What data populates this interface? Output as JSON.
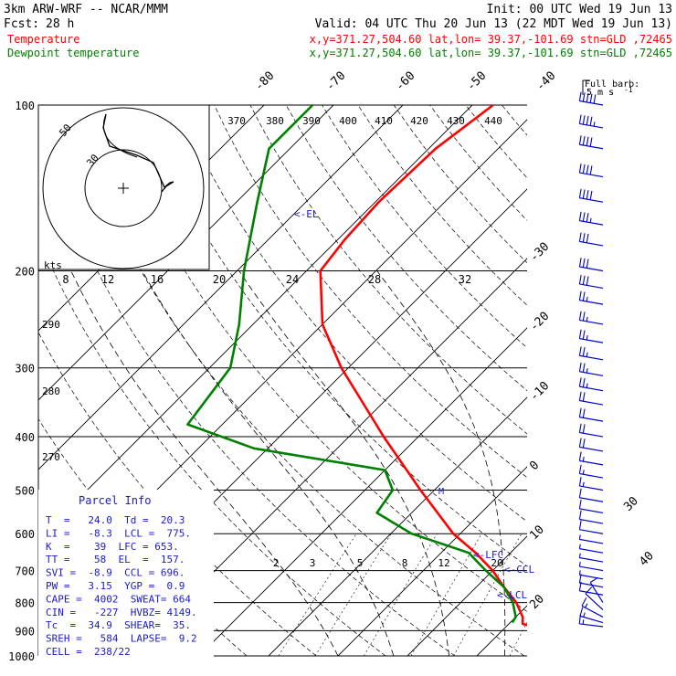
{
  "header": {
    "model": "3km ARW-WRF -- NCAR/MMM",
    "init": "Init: 00 UTC Wed 19 Jun 13",
    "fcst_label": "Fcst:",
    "fcst_value": "28 h",
    "valid": "Valid: 04 UTC Thu 20 Jun 13 (22 MDT Wed 19 Jun 13)",
    "temp_label": "Temperature",
    "temp_loc": "x,y=371.27,504.60   lat,lon= 39.37,-101.69  stn=GLD ,72465",
    "dew_label": "Dewpoint temperature",
    "dew_loc": "x,y=371.27,504.60   lat,lon= 39.37,-101.69  stn=GLD ,72465"
  },
  "colors": {
    "temperature": "#ff0000",
    "dewpoint": "#008000",
    "parcel": "#1a1acc",
    "barbs": "#0000cc"
  },
  "chart_data": {
    "type": "line",
    "diagram": "skew-T log-p",
    "pressure_ticks": [
      "100",
      "200",
      "300",
      "400",
      "500",
      "600",
      "700",
      "800",
      "900",
      "1000"
    ],
    "temperature_ticks": [
      "-80",
      "-70",
      "-60",
      "-50",
      "-40",
      "-30",
      "-20",
      "-10",
      "0",
      "10",
      "20",
      "30",
      "40"
    ],
    "theta_labels": [
      "370",
      "380",
      "390",
      "400",
      "410",
      "420",
      "430",
      "440"
    ],
    "theta_side_labels": [
      "290",
      "280",
      "270"
    ],
    "mixing_ratio_labels": [
      "2",
      "3",
      "5",
      "8",
      "12",
      "20"
    ],
    "hodograph": {
      "units": "kts",
      "ring_labels": [
        "50",
        "30"
      ],
      "speed_ticks": [
        "8",
        "12",
        "16",
        "20",
        "24",
        "28",
        "32"
      ]
    },
    "series": [
      {
        "name": "Temperature",
        "points": [
          [
            100,
            -57
          ],
          [
            120,
            -59
          ],
          [
            150,
            -59.5
          ],
          [
            175,
            -59
          ],
          [
            200,
            -58
          ],
          [
            250,
            -50
          ],
          [
            300,
            -41
          ],
          [
            400,
            -25
          ],
          [
            500,
            -12
          ],
          [
            600,
            -1
          ],
          [
            650,
            5
          ],
          [
            700,
            10
          ],
          [
            750,
            14
          ],
          [
            800,
            18
          ],
          [
            850,
            21
          ],
          [
            875,
            22
          ],
          [
            885,
            24
          ]
        ]
      },
      {
        "name": "Dewpoint temperature",
        "points": [
          [
            100,
            -83
          ],
          [
            120,
            -83
          ],
          [
            150,
            -77
          ],
          [
            200,
            -69
          ],
          [
            250,
            -62
          ],
          [
            300,
            -57
          ],
          [
            380,
            -55
          ],
          [
            420,
            -42
          ],
          [
            460,
            -20
          ],
          [
            500,
            -16
          ],
          [
            550,
            -15
          ],
          [
            600,
            -7
          ],
          [
            650,
            4
          ],
          [
            700,
            9
          ],
          [
            750,
            14
          ],
          [
            800,
            17.5
          ],
          [
            850,
            20
          ],
          [
            870,
            20.3
          ]
        ]
      }
    ]
  },
  "levels": {
    "el": "<-EL",
    "lfc": "<-LFC",
    "ccl": "<-CCL",
    "lcl": "<-LCL"
  },
  "parcel_info": {
    "title": "Parcel Info",
    "rows": [
      "T  =   24.0  Td =  20.3",
      "LI =   -8.3  LCL =  775.",
      "K  =    39  LFC = 653.",
      "TT =    58  EL  =  157.",
      "SVI =  -8.9  CCL = 696.",
      "PW =   3.15  YGP =  0.9",
      "CAPE =  4002  SWEAT= 664",
      "CIN =   -227  HVBZ= 4149.",
      "Tc  =  34.9  SHEAR=  35.",
      "SREH =   584  LAPSE=  9.2",
      "CELL =  238/22"
    ]
  },
  "barb_legend": {
    "title": "Full barb:",
    "value": "5 m s",
    "exp": "-1"
  },
  "wind_profile": [
    [
      100,
      50
    ],
    [
      110,
      45
    ],
    [
      120,
      42
    ],
    [
      135,
      40
    ],
    [
      150,
      38
    ],
    [
      165,
      35
    ],
    [
      180,
      32
    ],
    [
      200,
      30
    ],
    [
      215,
      28
    ],
    [
      230,
      27
    ],
    [
      250,
      26
    ],
    [
      270,
      25
    ],
    [
      290,
      24
    ],
    [
      310,
      24
    ],
    [
      330,
      23
    ],
    [
      350,
      22
    ],
    [
      375,
      21
    ],
    [
      400,
      20
    ],
    [
      425,
      19
    ],
    [
      450,
      17
    ],
    [
      475,
      15
    ],
    [
      500,
      13
    ],
    [
      525,
      12
    ],
    [
      550,
      10
    ],
    [
      575,
      9
    ],
    [
      600,
      8
    ],
    [
      625,
      7
    ],
    [
      650,
      6
    ],
    [
      675,
      6
    ],
    [
      700,
      6
    ],
    [
      725,
      7
    ],
    [
      750,
      8
    ],
    [
      775,
      9
    ],
    [
      800,
      10
    ],
    [
      825,
      12
    ],
    [
      850,
      14
    ],
    [
      870,
      15
    ],
    [
      885,
      16
    ]
  ]
}
